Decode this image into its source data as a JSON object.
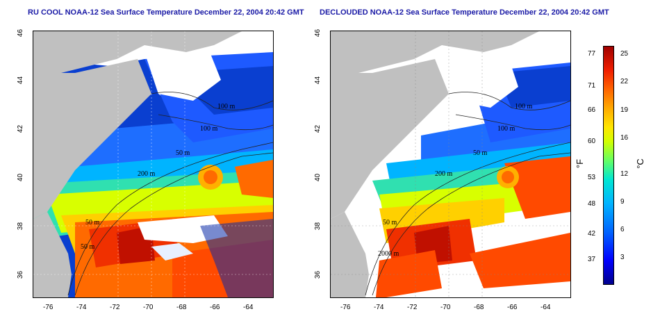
{
  "left_panel": {
    "title": "RU COOL NOAA-12 Sea Surface Temperature December 22, 2004 20:42 GMT",
    "contour_labels": [
      "100 m",
      "100 m",
      "50 m",
      "200 m",
      "50 m",
      "50 m"
    ]
  },
  "right_panel": {
    "title": "DECLOUDED NOAA-12 Sea Surface Temperature December 22, 2004 20:42 GMT",
    "contour_labels": [
      "100 m",
      "100 m",
      "50 m",
      "200 m",
      "50 m",
      "2000 m"
    ]
  },
  "axes": {
    "x_ticks": [
      "-76",
      "-74",
      "-72",
      "-70",
      "-68",
      "-66",
      "-64"
    ],
    "y_ticks": [
      "36",
      "38",
      "40",
      "42",
      "44",
      "46"
    ],
    "x_range": [
      -77.2,
      -63.0
    ],
    "y_range": [
      35.0,
      46.0
    ]
  },
  "colorbar": {
    "fahrenheit_ticks": [
      "77",
      "71",
      "66",
      "60",
      "53",
      "48",
      "42",
      "37"
    ],
    "celsius_ticks": [
      "25",
      "22",
      "19",
      "16",
      "12",
      "9",
      "6",
      "3"
    ],
    "fahrenheit_unit": "°F",
    "celsius_unit": "°C",
    "colors": [
      "#00008c",
      "#0000ff",
      "#0064ff",
      "#00b4ff",
      "#00e6d2",
      "#64ff64",
      "#d2ff00",
      "#ffe600",
      "#ffaa00",
      "#ff6400",
      "#f01e00",
      "#a00000"
    ]
  },
  "map_colors": {
    "land": "#c0c0c0",
    "cloud": "#ffffff",
    "shelf_cold": "#1e5aff"
  }
}
